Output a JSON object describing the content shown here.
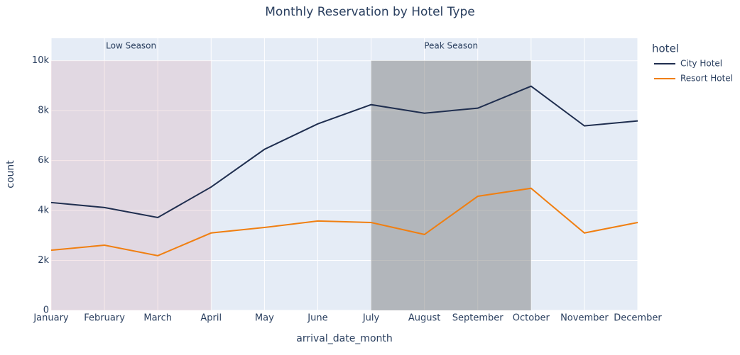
{
  "chart_data": {
    "type": "line",
    "title": "Monthly Reservation by Hotel Type",
    "x_label": "arrival_date_month",
    "y_label": "count",
    "categories": [
      "January",
      "February",
      "March",
      "April",
      "May",
      "June",
      "July",
      "August",
      "September",
      "October",
      "November",
      "December"
    ],
    "series": [
      {
        "name": "City Hotel",
        "color": "#1f2e4f",
        "values": [
          4320,
          4120,
          3720,
          4940,
          6450,
          7470,
          8240,
          7900,
          8100,
          8980,
          7390,
          7590
        ]
      },
      {
        "name": "Resort Hotel",
        "color": "#f07f11",
        "values": [
          2410,
          2610,
          2190,
          3100,
          3320,
          3580,
          3520,
          3040,
          4570,
          4890,
          3100,
          3520
        ]
      }
    ],
    "legend_title": "hotel",
    "regions": [
      {
        "label": "Low Season",
        "start": "January",
        "end": "April",
        "y1": 10000,
        "color": "rgba(210,140,150,0.2)"
      },
      {
        "label": "Peak Season",
        "start": "July",
        "end": "October",
        "y1": 10000,
        "color": "rgba(128,128,128,0.5)"
      }
    ],
    "ylim": [
      0,
      10900
    ],
    "yticks": [
      0,
      {
        "value": 2000,
        "label": "2k"
      },
      {
        "value": 4000,
        "label": "4k"
      },
      {
        "value": 6000,
        "label": "6k"
      },
      {
        "value": 8000,
        "label": "8k"
      },
      {
        "value": 10000,
        "label": "10k"
      }
    ],
    "grid": true
  }
}
